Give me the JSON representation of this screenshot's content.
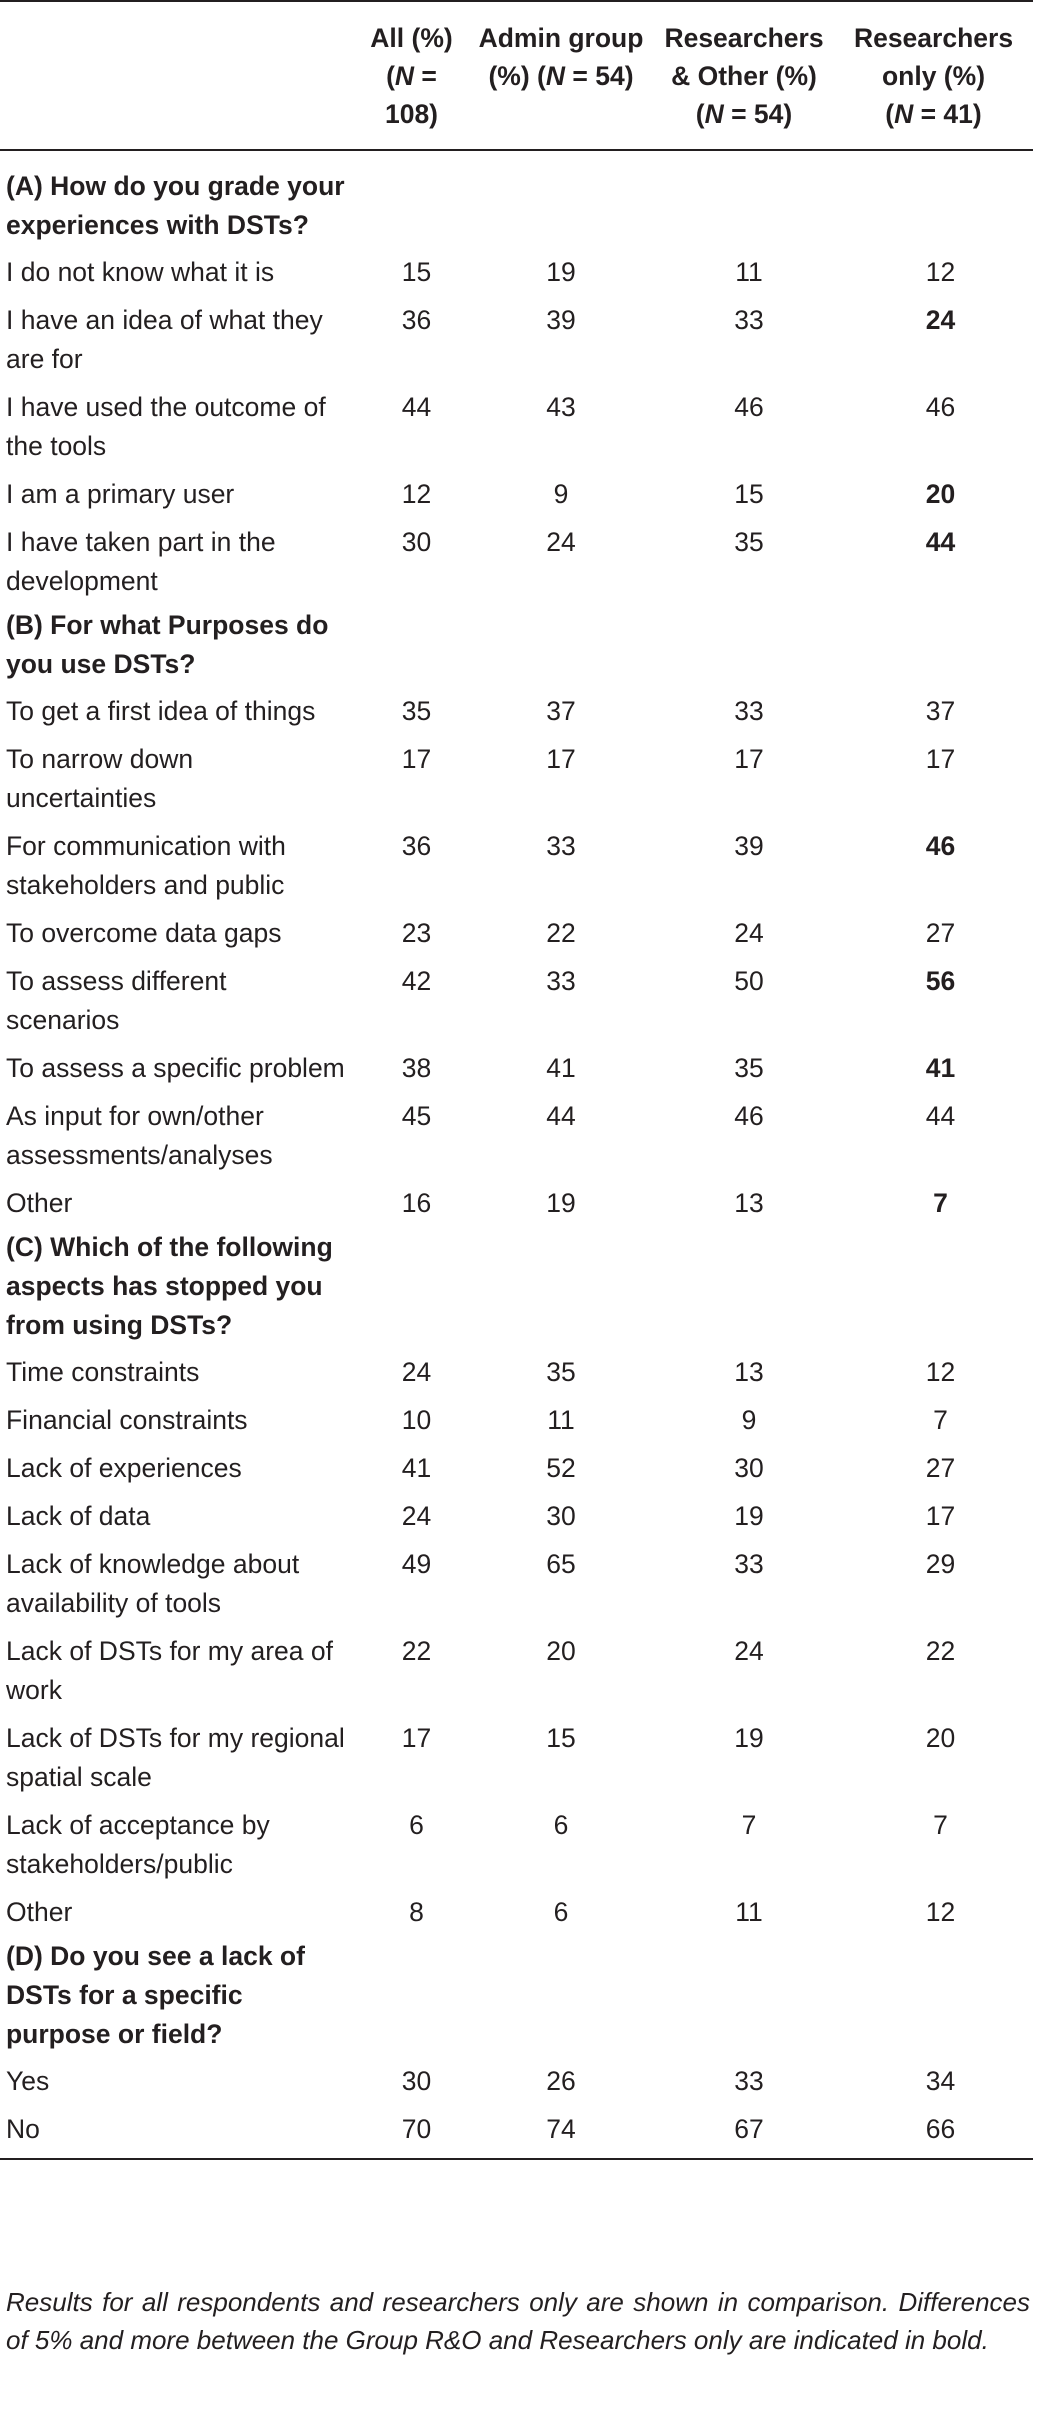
{
  "table": {
    "columns": [
      {
        "line1": "All (%)",
        "line2_pre": "(",
        "line2_n": "N",
        "line2_post": " = 108)",
        "line3": ""
      },
      {
        "line1": "Admin group",
        "line2_pre": "(%) (",
        "line2_n": "N",
        "line2_post": " = 54)",
        "line3": ""
      },
      {
        "line1": "Researchers",
        "line2_pre": "& Other (%)",
        "line2_n": "",
        "line2_post": "",
        "line3_pre": "(",
        "line3_n": "N",
        "line3_post": " = 54)"
      },
      {
        "line1": "Researchers",
        "line2_pre": "only (%)",
        "line2_n": "",
        "line2_post": "",
        "line3_pre": "(",
        "line3_n": "N",
        "line3_post": " = 41)"
      }
    ],
    "sections": [
      {
        "title": "(A) How do you grade your experiences with DSTs?",
        "rows": [
          {
            "label": "I do not know what it is",
            "values": [
              "15",
              "19",
              "11",
              "12"
            ],
            "bold_last": false
          },
          {
            "label": "I have an idea of what they are for",
            "values": [
              "36",
              "39",
              "33",
              "24"
            ],
            "bold_last": true
          },
          {
            "label": "I have used the outcome of the tools",
            "values": [
              "44",
              "43",
              "46",
              "46"
            ],
            "bold_last": false
          },
          {
            "label": "I am a primary user",
            "values": [
              "12",
              "9",
              "15",
              "20"
            ],
            "bold_last": true
          },
          {
            "label": "I have taken part in the development",
            "values": [
              "30",
              "24",
              "35",
              "44"
            ],
            "bold_last": true
          }
        ]
      },
      {
        "title": "(B) For what Purposes do you use DSTs?",
        "rows": [
          {
            "label": "To get a first idea of things",
            "values": [
              "35",
              "37",
              "33",
              "37"
            ],
            "bold_last": false
          },
          {
            "label": "To narrow down uncertainties",
            "values": [
              "17",
              "17",
              "17",
              "17"
            ],
            "bold_last": false
          },
          {
            "label": "For communication with stakeholders and public",
            "values": [
              "36",
              "33",
              "39",
              "46"
            ],
            "bold_last": true
          },
          {
            "label": "To overcome data gaps",
            "values": [
              "23",
              "22",
              "24",
              "27"
            ],
            "bold_last": false
          },
          {
            "label": "To assess different scenarios",
            "values": [
              "42",
              "33",
              "50",
              "56"
            ],
            "bold_last": true
          },
          {
            "label": "To assess a specific problem",
            "values": [
              "38",
              "41",
              "35",
              "41"
            ],
            "bold_last": true
          },
          {
            "label": "As input for own/other assessments/analyses",
            "values": [
              "45",
              "44",
              "46",
              "44"
            ],
            "bold_last": false
          },
          {
            "label": "Other",
            "values": [
              "16",
              "19",
              "13",
              "7"
            ],
            "bold_last": true
          }
        ]
      },
      {
        "title": "(C) Which of the following aspects has stopped you from using DSTs?",
        "rows": [
          {
            "label": "Time constraints",
            "values": [
              "24",
              "35",
              "13",
              "12"
            ],
            "bold_last": false
          },
          {
            "label": "Financial constraints",
            "values": [
              "10",
              "11",
              "9",
              "7"
            ],
            "bold_last": false
          },
          {
            "label": "Lack of experiences",
            "values": [
              "41",
              "52",
              "30",
              "27"
            ],
            "bold_last": false
          },
          {
            "label": "Lack of data",
            "values": [
              "24",
              "30",
              "19",
              "17"
            ],
            "bold_last": false
          },
          {
            "label": "Lack of knowledge about availability of tools",
            "values": [
              "49",
              "65",
              "33",
              "29"
            ],
            "bold_last": false
          },
          {
            "label": "Lack of DSTs for my area of work",
            "values": [
              "22",
              "20",
              "24",
              "22"
            ],
            "bold_last": false
          },
          {
            "label": "Lack of DSTs for my regional spatial scale",
            "values": [
              "17",
              "15",
              "19",
              "20"
            ],
            "bold_last": false
          },
          {
            "label": "Lack of acceptance by stakeholders/public",
            "values": [
              "6",
              "6",
              "7",
              "7"
            ],
            "bold_last": false
          },
          {
            "label": "Other",
            "values": [
              "8",
              "6",
              "11",
              "12"
            ],
            "bold_last": false
          }
        ]
      },
      {
        "title": "(D) Do you see a lack of DSTs for a specific purpose or field?",
        "rows": [
          {
            "label": "Yes",
            "values": [
              "30",
              "26",
              "33",
              "34"
            ],
            "bold_last": false
          },
          {
            "label": "No",
            "values": [
              "70",
              "74",
              "67",
              "66"
            ],
            "bold_last": false
          }
        ]
      }
    ]
  },
  "footnote": "Results for all respondents and researchers only are shown in comparison. Differences of 5% and more between the Group R&O and Researchers only are indicated in bold."
}
